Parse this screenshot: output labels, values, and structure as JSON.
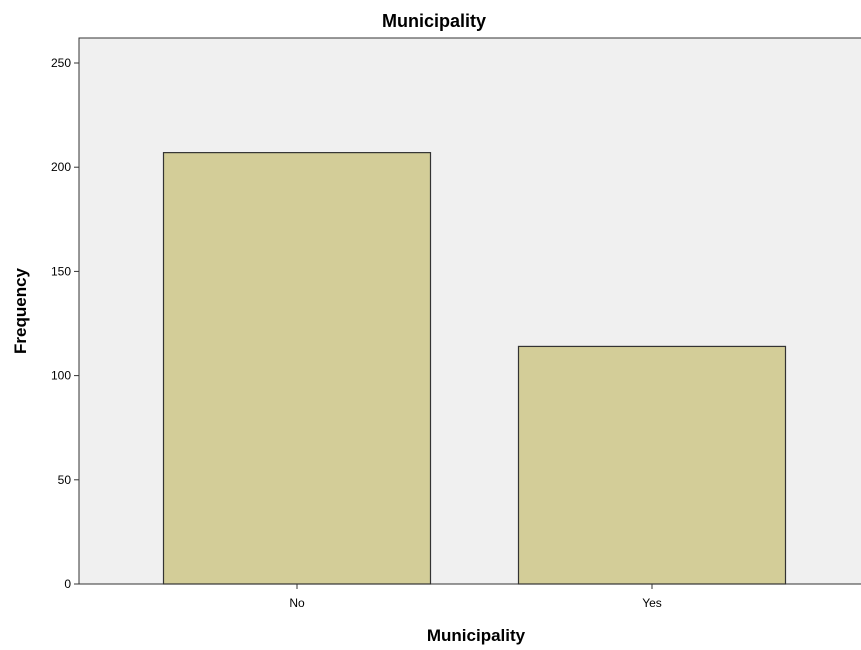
{
  "chart_data": {
    "type": "bar",
    "title": "Municipality",
    "xlabel": "Municipality",
    "ylabel": "Frequency",
    "categories": [
      "No",
      "Yes"
    ],
    "values": [
      207,
      114
    ],
    "ylim": [
      0,
      262
    ],
    "yticks": [
      0,
      50,
      100,
      150,
      200,
      250
    ],
    "grid": false,
    "legend": "none",
    "colors": {
      "bar_fill": "#d3cd98",
      "bar_stroke": "#333333",
      "plot_background": "#f0f0f0",
      "axis": "#333333"
    }
  }
}
